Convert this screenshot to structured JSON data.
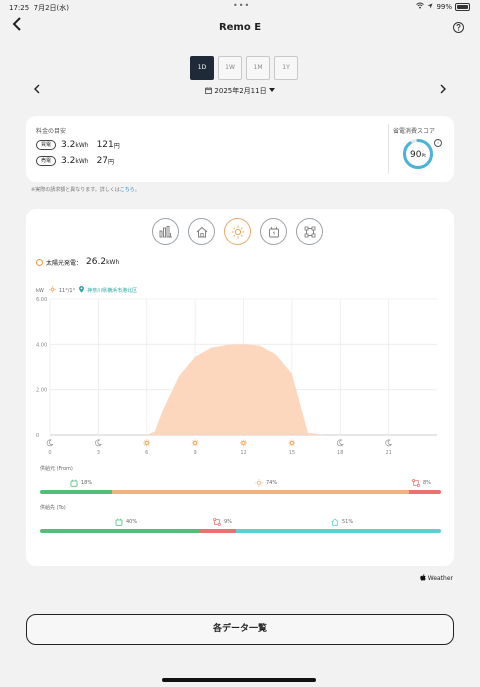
{
  "status_bar": {
    "time": "17:25",
    "date": "7月2日(水)",
    "battery": "99%"
  },
  "nav": {
    "title": "Remo E",
    "back_glyph": "‹",
    "help_glyph": "?"
  },
  "period_tabs": [
    {
      "label": "1D",
      "active": true
    },
    {
      "label": "1W",
      "active": false
    },
    {
      "label": "1M",
      "active": false
    },
    {
      "label": "1Y",
      "active": false
    }
  ],
  "date_nav": {
    "date": "2025年2月11日",
    "prev": "‹",
    "next": "›"
  },
  "cost_card": {
    "label": "料金の目安",
    "rows": [
      {
        "tag": "買電",
        "amount": "3.2",
        "amount_unit": "kWh",
        "price": "121",
        "price_unit": "円"
      },
      {
        "tag": "売電",
        "amount": "3.2",
        "amount_unit": "kWh",
        "price": "27",
        "price_unit": "円"
      }
    ],
    "score_label": "省電消費スコア",
    "score": "90",
    "score_unit": "Pt",
    "score_ratio": 0.9
  },
  "note": {
    "text": "※実際の請求額と異なります。詳しくは",
    "link": "こちら",
    "end": "。"
  },
  "solar": {
    "total_label": "太陽光発電：",
    "total_value": "26.2",
    "total_unit": "kWh",
    "unit_label": "kW",
    "weather_temp": "11°/1°",
    "location": "神奈川県横浜市港北区"
  },
  "chart_data": {
    "type": "area",
    "ylabel": "kW",
    "ylim": [
      0,
      6
    ],
    "y_ticks": [
      "6.00",
      "4.00",
      "2.00",
      "0"
    ],
    "xlim": [
      0,
      24
    ],
    "x_ticks": [
      "0",
      "3",
      "6",
      "9",
      "12",
      "15",
      "18",
      "21"
    ],
    "series": [
      {
        "color": "#fcd6bd",
        "x": [
          0,
          6,
          6.5,
          7,
          8,
          9,
          10,
          11,
          12,
          13,
          14,
          15,
          15.5,
          16,
          17,
          24
        ],
        "values": [
          0,
          0,
          0.15,
          1.1,
          2.6,
          3.45,
          3.85,
          3.98,
          4.0,
          3.95,
          3.55,
          2.7,
          1.4,
          0.1,
          0,
          0
        ]
      }
    ],
    "weather_icons": [
      "moon",
      "moon",
      "sun",
      "sun",
      "sun",
      "sun",
      "moon",
      "moon"
    ]
  },
  "supply_from": {
    "label": "供給元 (From)",
    "segments": [
      {
        "name": "battery",
        "percent": "18%",
        "ratio": 0.18,
        "color": "#4fbf7a"
      },
      {
        "name": "solar",
        "percent": "74%",
        "ratio": 0.74,
        "color": "#f2b27e"
      },
      {
        "name": "grid",
        "percent": "8%",
        "ratio": 0.08,
        "color": "#ee6f6f"
      }
    ]
  },
  "supply_to": {
    "label": "供給先 (To)",
    "segments": [
      {
        "name": "battery",
        "percent": "40%",
        "ratio": 0.4,
        "color": "#4fbf7a"
      },
      {
        "name": "grid",
        "percent": "9%",
        "ratio": 0.09,
        "color": "#ee6f6f"
      },
      {
        "name": "home",
        "percent": "51%",
        "ratio": 0.51,
        "color": "#5ccfd3"
      }
    ]
  },
  "weather_credit": "Weather",
  "list_button": "各データ一覧"
}
